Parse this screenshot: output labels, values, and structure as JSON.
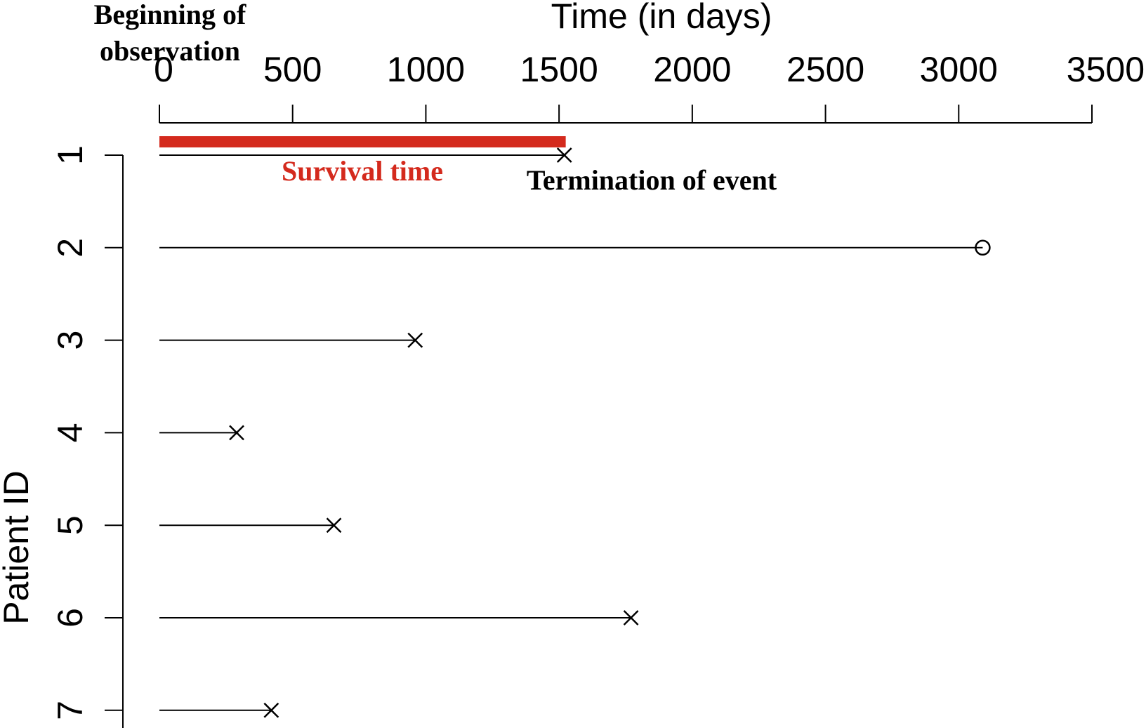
{
  "chart_data": {
    "type": "timeline",
    "xlabel": "Time  (in  days)",
    "ylabel": "Patient  ID",
    "xlim": [
      0,
      3500
    ],
    "x_ticks": [
      0,
      500,
      1000,
      1500,
      2000,
      2500,
      3000,
      3500
    ],
    "x_tick_labels": [
      "0",
      "500",
      "1000",
      "1500",
      "2000",
      "2500",
      "3000",
      "3500"
    ],
    "y_ticks": [
      1,
      2,
      3,
      4,
      5,
      6,
      7
    ],
    "y_tick_labels": [
      "1",
      "2",
      "3",
      "4",
      "5",
      "6",
      "7"
    ],
    "patients": [
      {
        "id": 1,
        "start": 0,
        "end": 1520,
        "status": "event",
        "marker": "x"
      },
      {
        "id": 2,
        "start": 0,
        "end": 3090,
        "status": "censored",
        "marker": "o"
      },
      {
        "id": 3,
        "start": 0,
        "end": 960,
        "status": "event",
        "marker": "x"
      },
      {
        "id": 4,
        "start": 0,
        "end": 290,
        "status": "event",
        "marker": "x"
      },
      {
        "id": 5,
        "start": 0,
        "end": 655,
        "status": "event",
        "marker": "x"
      },
      {
        "id": 6,
        "start": 0,
        "end": 1770,
        "status": "event",
        "marker": "x"
      },
      {
        "id": 7,
        "start": 0,
        "end": 420,
        "status": "event",
        "marker": "x"
      }
    ],
    "highlight": {
      "patient": 1,
      "start": 0,
      "end": 1525,
      "color": "#d42a1d"
    },
    "annotations": {
      "beginning": "Beginning of\nobservation",
      "survival": "Survival time",
      "termination": "Termination of event"
    },
    "colors": {
      "line": "#000000",
      "highlight": "#d42a1d",
      "survival_text": "#d42a1d"
    }
  }
}
